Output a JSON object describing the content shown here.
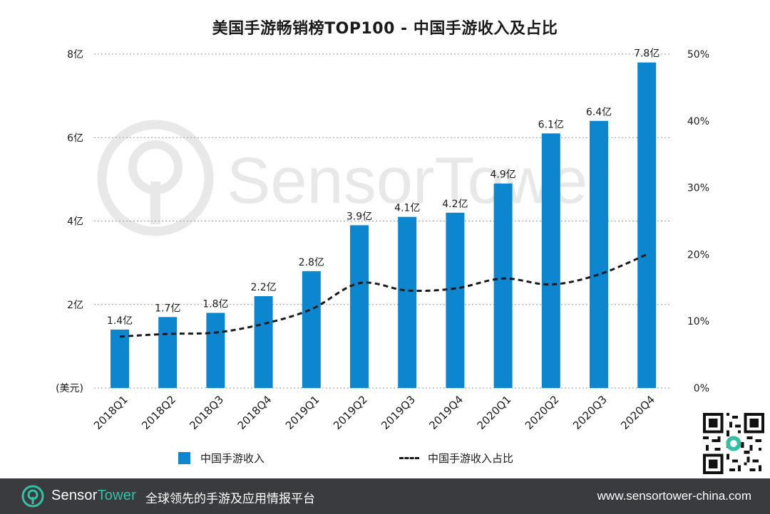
{
  "title": "美国手游畅销榜TOP100 - 中国手游收入及占比",
  "chart_data": {
    "type": "bar",
    "title": "美国手游畅销榜TOP100 - 中国手游收入及占比",
    "categories": [
      "2018Q1",
      "2018Q2",
      "2018Q3",
      "2018Q4",
      "2019Q1",
      "2019Q2",
      "2019Q3",
      "2019Q4",
      "2020Q1",
      "2020Q2",
      "2020Q3",
      "2020Q4"
    ],
    "series": [
      {
        "name": "中国手游收入",
        "type": "bar",
        "axis": "left",
        "values": [
          1.4,
          1.7,
          1.8,
          2.2,
          2.8,
          3.9,
          4.1,
          4.2,
          4.9,
          6.1,
          6.4,
          7.8
        ],
        "labels": [
          "1.4亿",
          "1.7亿",
          "1.8亿",
          "2.2亿",
          "2.8亿",
          "3.9亿",
          "4.1亿",
          "4.2亿",
          "4.9亿",
          "6.1亿",
          "6.4亿",
          "7.8亿"
        ],
        "color": "#0d86d0"
      },
      {
        "name": "中国手游收入占比",
        "type": "line",
        "style": "dashed",
        "axis": "right",
        "values": [
          7.7,
          8.1,
          8.3,
          9.6,
          11.8,
          15.7,
          14.6,
          14.9,
          16.4,
          15.5,
          17.0,
          20.0
        ],
        "color": "#1a1a1a"
      }
    ],
    "y_left": {
      "ylim": [
        0,
        8
      ],
      "ticks": [
        0,
        2,
        4,
        6,
        8
      ],
      "tick_labels": [
        "(美元)",
        "2亿",
        "4亿",
        "6亿",
        "8亿"
      ]
    },
    "y_right": {
      "ylim": [
        0,
        50
      ],
      "ticks": [
        0,
        10,
        20,
        30,
        40,
        50
      ],
      "tick_labels": [
        "0%",
        "10%",
        "20%",
        "30%",
        "40%",
        "50%"
      ]
    },
    "grid": true,
    "gridlines": "horizontal-dotted",
    "legend_position": "bottom"
  },
  "legend": {
    "bar_label": "中国手游收入",
    "line_label": "中国手游收入占比"
  },
  "watermark": {
    "text": "SensorTower"
  },
  "footer": {
    "brand_part1": "Sensor",
    "brand_part2": "Tower",
    "tagline": "全球领先的手游及应用情报平台",
    "website": "www.sensortower-china.com"
  },
  "colors": {
    "bar": "#0d86d0",
    "line": "#1a1a1a",
    "footer_bg": "#3a3b3f",
    "brand_accent": "#34c1a3"
  }
}
